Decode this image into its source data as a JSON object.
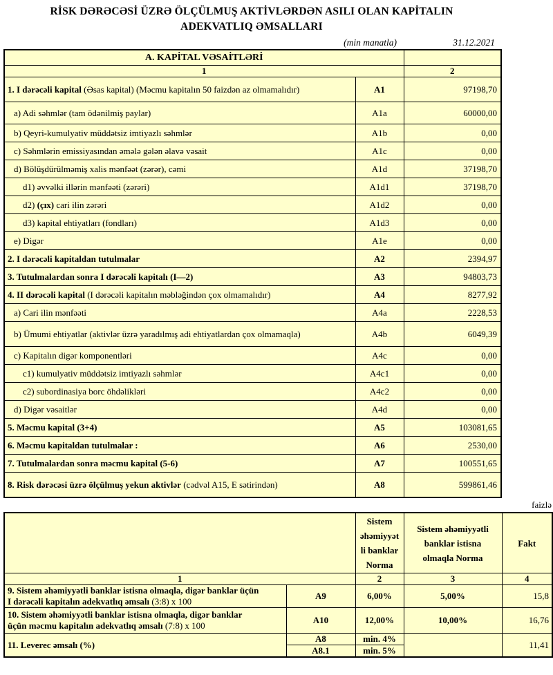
{
  "title": {
    "line1": "RİSK DƏRƏCƏSİ ÜZRƏ ÖLÇÜLMUŞ AKTİVLƏRDƏN ASILI OLAN KAPİTALIN",
    "line2": "ADEKVATLIQ ƏMSALLARI"
  },
  "meta": {
    "unit_note": "(min manatla)",
    "date": "31.12.2021",
    "percent_note": "faizlə"
  },
  "colors": {
    "cell_fill": "#FFFFCC",
    "border": "#000000",
    "page": "#FFFFFF"
  },
  "table1": {
    "section_header": "A. KAPİTAL VƏSAİTLƏRİ",
    "col_numbers": [
      "1",
      "2"
    ],
    "rows": [
      {
        "parts": [
          {
            "t": "1. I dərəcəli kapital",
            "b": true
          },
          {
            "t": " (Əsas kapital) (Məcmu kapitalın 50 faizdən az olmamalıdır)",
            "b": false
          }
        ],
        "indent": 0,
        "code": "A1",
        "code_bold": true,
        "value": "97198,70"
      },
      {
        "parts": [
          {
            "t": "a) Adi səhmlər (tam ödənilmiş paylar)",
            "b": false
          }
        ],
        "indent": 1,
        "code": "A1a",
        "code_bold": false,
        "value": "60000,00"
      },
      {
        "parts": [
          {
            "t": "b) Qeyri-kumulyativ müddətsiz imtiyazlı səhmlər",
            "b": false
          }
        ],
        "indent": 1,
        "code": "A1b",
        "code_bold": false,
        "value": "0,00"
      },
      {
        "parts": [
          {
            "t": "c) Səhmlərin emissiyasından əmələ gələn əlavə vəsait",
            "b": false
          }
        ],
        "indent": 1,
        "code": "A1c",
        "code_bold": false,
        "value": "0,00"
      },
      {
        "parts": [
          {
            "t": "d) Bölüşdürülməmiş xalis mənfəət (zərər), cəmi",
            "b": false
          }
        ],
        "indent": 1,
        "code": "A1d",
        "code_bold": false,
        "value": "37198,70"
      },
      {
        "parts": [
          {
            "t": "d1) əvvəlki illərin mənfəəti (zərəri)",
            "b": false
          }
        ],
        "indent": 2,
        "code": "A1d1",
        "code_bold": false,
        "value": "37198,70"
      },
      {
        "parts": [
          {
            "t": "d2) ",
            "b": false
          },
          {
            "t": "(çıx)",
            "b": true
          },
          {
            "t": " cari ilin zərəri",
            "b": false
          }
        ],
        "indent": 2,
        "code": "A1d2",
        "code_bold": false,
        "value": "0,00"
      },
      {
        "parts": [
          {
            "t": "d3) kapital ehtiyatları (fondları)",
            "b": false
          }
        ],
        "indent": 2,
        "code": "A1d3",
        "code_bold": false,
        "value": "0,00"
      },
      {
        "parts": [
          {
            "t": "e) Digər",
            "b": false
          }
        ],
        "indent": 1,
        "code": "A1e",
        "code_bold": false,
        "value": "0,00"
      },
      {
        "parts": [
          {
            "t": "2. I dərəcəli kapitaldan tutulmalar",
            "b": true
          }
        ],
        "indent": 0,
        "code": "A2",
        "code_bold": true,
        "value": "2394,97"
      },
      {
        "parts": [
          {
            "t": "3. Tutulmalardan sonra I dərəcəli kapitalı (I—2)",
            "b": true
          }
        ],
        "indent": 0,
        "code": "A3",
        "code_bold": true,
        "value": "94803,73"
      },
      {
        "parts": [
          {
            "t": "4. II dərəcəli kapital",
            "b": true
          },
          {
            "t": " (I dərəcəli kapitalın məbləğindən çox olmamalıdır)",
            "b": false
          }
        ],
        "indent": 0,
        "code": "A4",
        "code_bold": true,
        "value": "8277,92"
      },
      {
        "parts": [
          {
            "t": "a) Cari ilin mənfəəti",
            "b": false
          }
        ],
        "indent": 1,
        "code": "A4a",
        "code_bold": false,
        "value": "2228,53"
      },
      {
        "parts": [
          {
            "t": "b) Ümumi ehtiyatlar (aktivlər üzrə yaradılmış adi ehtiyatlardan çox olmamaqla)",
            "b": false
          }
        ],
        "indent": 1,
        "code": "A4b",
        "code_bold": false,
        "value": "6049,39"
      },
      {
        "parts": [
          {
            "t": "c) Kapitalın digər komponentləri",
            "b": false
          }
        ],
        "indent": 1,
        "code": "A4c",
        "code_bold": false,
        "value": "0,00"
      },
      {
        "parts": [
          {
            "t": "c1) kumulyativ müddətsiz imtiyazlı səhmlər",
            "b": false
          }
        ],
        "indent": 2,
        "code": "A4c1",
        "code_bold": false,
        "value": "0,00"
      },
      {
        "parts": [
          {
            "t": "c2) subordinasiya borc öhdəlikləri",
            "b": false
          }
        ],
        "indent": 2,
        "code": "A4c2",
        "code_bold": false,
        "value": "0,00"
      },
      {
        "parts": [
          {
            "t": "d) Digər vəsaitlər",
            "b": false
          }
        ],
        "indent": 1,
        "code": "A4d",
        "code_bold": false,
        "value": "0,00"
      },
      {
        "parts": [
          {
            "t": "5. Məcmu kapital (3+4)",
            "b": true
          }
        ],
        "indent": 0,
        "code": "A5",
        "code_bold": true,
        "value": "103081,65"
      },
      {
        "parts": [
          {
            "t": "6. Məcmu kapitaldan tutulmalar :",
            "b": true
          }
        ],
        "indent": 0,
        "code": "A6",
        "code_bold": true,
        "value": "2530,00"
      },
      {
        "parts": [
          {
            "t": "7. Tutulmalardan sonra məcmu kapital (5-6)",
            "b": true
          }
        ],
        "indent": 0,
        "code": "A7",
        "code_bold": true,
        "value": "100551,65"
      },
      {
        "parts": [
          {
            "t": "8. Risk dərəcəsi üzrə ölçülmuş yekun aktivlər",
            "b": true
          },
          {
            "t": " (cədvəl A15, E sətirindən)",
            "b": false
          }
        ],
        "indent": 0,
        "code": "A8",
        "code_bold": true,
        "value": "599861,46"
      }
    ]
  },
  "table2": {
    "col_headers": [
      "",
      "Sistem\nəhəmiyyət\nli banklar\nNorma",
      "Sistem əhəmiyyətli\nbanklar istisna\nolmaqla Norma",
      "Fakt"
    ],
    "col_numbers": [
      "1",
      "2",
      "3",
      "4"
    ],
    "rows": [
      {
        "label_bold": "9. Sistem əhəmiyyətli banklar istisna olmaqla, digər banklar üçün\nI dərəcəli kapitalın adekvatlıq əmsalı ",
        "label_tail": "(3:8) x 100",
        "code": "A9",
        "sys_norma": "6,00%",
        "nonsys_norma": "5,00%",
        "fakt": "15,8"
      },
      {
        "label_bold": "10. Sistem əhəmiyyətli banklar istisna olmaqla, digər banklar\nüçün məcmu kapitalın adekvatlıq əmsalı ",
        "label_tail": "(7:8) x 100",
        "code": "A10",
        "sys_norma": "12,00%",
        "nonsys_norma": "10,00%",
        "fakt": "16,76"
      },
      {
        "label_bold": "11. Leverec əmsalı (%)",
        "label_tail": "",
        "sub_rows": [
          {
            "code": "A8",
            "norma": "min. 4%"
          },
          {
            "code": "A8.1",
            "norma": "min. 5%"
          }
        ],
        "nonsys_norma": "",
        "fakt": "11,41"
      }
    ]
  }
}
